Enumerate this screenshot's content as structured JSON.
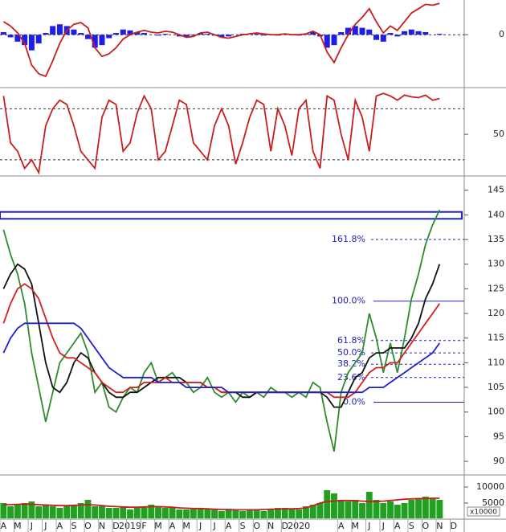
{
  "chart_data": [
    {
      "type": "line",
      "ylim": [
        -6,
        4
      ],
      "yticks": [
        0
      ],
      "grid": true,
      "series": [
        {
          "kind": "bar",
          "color": "#1e1ee6",
          "values": [
            0.3,
            -0.3,
            -0.8,
            -1.2,
            -1.8,
            -1.0,
            0.2,
            1.0,
            1.2,
            1.0,
            0.6,
            0.2,
            -0.5,
            -1.5,
            -1.2,
            -0.4,
            0.2,
            0.6,
            0.5,
            0.3,
            0.2,
            0.0,
            -0.1,
            0.1,
            0.0,
            -0.2,
            -0.3,
            -0.1,
            0.2,
            0.1,
            -0.1,
            -0.3,
            -0.2,
            0.0,
            0.1,
            0.0,
            0.1,
            -0.1,
            0.0,
            -0.1,
            0.1,
            0.0,
            -0.1,
            0.1,
            0.3,
            -0.2,
            -1.5,
            -1.2,
            0.3,
            0.8,
            1.0,
            0.8,
            0.6,
            -0.6,
            -0.8,
            0.2,
            -0.2,
            0.4,
            0.6,
            0.4,
            0.3,
            0.0,
            0.1,
            null,
            null,
            null
          ]
        },
        {
          "kind": "line",
          "color": "#c81e1e",
          "values": [
            1.5,
            1.0,
            0.2,
            -1.0,
            -3.5,
            -4.5,
            -4.8,
            -3.0,
            -1.0,
            0.5,
            1.2,
            1.4,
            0.8,
            -1.5,
            -2.5,
            -2.2,
            -1.5,
            -0.5,
            0.0,
            0.3,
            0.5,
            0.3,
            0.2,
            0.4,
            0.3,
            0.0,
            -0.3,
            -0.2,
            0.2,
            0.3,
            0.0,
            -0.3,
            -0.4,
            -0.2,
            0.0,
            0.1,
            0.2,
            0.1,
            0.0,
            0.0,
            0.1,
            0.0,
            0.0,
            0.1,
            0.4,
            0.0,
            -2.0,
            -3.2,
            -1.5,
            0.0,
            1.2,
            2.0,
            3.0,
            1.5,
            0.2,
            1.0,
            0.5,
            1.5,
            2.5,
            3.0,
            3.5,
            3.4,
            3.6,
            null,
            null,
            null
          ]
        }
      ]
    },
    {
      "type": "line",
      "ylim": [
        2,
        102
      ],
      "yticks": [
        50
      ],
      "grid": false,
      "ref_lines": [
        20,
        80
      ],
      "series": [
        {
          "kind": "line",
          "color": "#c81e1e",
          "values": [
            95,
            40,
            30,
            10,
            20,
            5,
            60,
            80,
            90,
            85,
            60,
            30,
            20,
            10,
            70,
            90,
            85,
            30,
            40,
            75,
            95,
            80,
            20,
            30,
            60,
            90,
            85,
            40,
            30,
            20,
            60,
            80,
            60,
            15,
            40,
            70,
            90,
            85,
            30,
            80,
            60,
            25,
            80,
            90,
            30,
            10,
            95,
            90,
            50,
            20,
            90,
            70,
            30,
            95,
            98,
            95,
            90,
            96,
            94,
            93,
            96,
            90,
            92,
            null,
            null,
            null
          ]
        }
      ]
    },
    {
      "type": "line",
      "ylim": [
        87.4,
        147.4
      ],
      "yticks": [
        90,
        95,
        100,
        105,
        110,
        115,
        120,
        125,
        130,
        135,
        140,
        145
      ],
      "grid": false,
      "resistance": [
        139.2,
        140.6
      ],
      "fib_levels": [
        {
          "name": "161.8%",
          "price": 135
        },
        {
          "name": "100.0%",
          "price": 122.5
        },
        {
          "name": "61.8%",
          "price": 114.5
        },
        {
          "name": "50.0%",
          "price": 112
        },
        {
          "name": "38.2%",
          "price": 109.7
        },
        {
          "name": "23.6%",
          "price": 107
        },
        {
          "name": "0.0%",
          "price": 102
        }
      ],
      "series": [
        {
          "kind": "line",
          "color": "#2e8b2e",
          "values": [
            137,
            132,
            128,
            122,
            112,
            105,
            98,
            104,
            110,
            112,
            114,
            116,
            112,
            104,
            106,
            101,
            100,
            103,
            105,
            104,
            108,
            110,
            106,
            107,
            108,
            106,
            106,
            104,
            105,
            107,
            104,
            103,
            104,
            102,
            104,
            103,
            104,
            103,
            105,
            104,
            104,
            103,
            104,
            103,
            106,
            105,
            98,
            92,
            104,
            108,
            110,
            112,
            120,
            115,
            108,
            114,
            108,
            115,
            123,
            128,
            134,
            138,
            141,
            null,
            null,
            null
          ]
        },
        {
          "kind": "line",
          "color": "#111111",
          "values": [
            125,
            128,
            130,
            129,
            126,
            118,
            110,
            105,
            104,
            106,
            110,
            112,
            111,
            108,
            106,
            104,
            103,
            103,
            104,
            104,
            105,
            106,
            107,
            107,
            107,
            107,
            106,
            106,
            106,
            105,
            105,
            104,
            104,
            104,
            103,
            103,
            104,
            104,
            104,
            104,
            104,
            104,
            104,
            104,
            104,
            104,
            103,
            101,
            101,
            104,
            107,
            108,
            111,
            112,
            112,
            113,
            113,
            113,
            115,
            118,
            123,
            126,
            130,
            null,
            null,
            null
          ]
        },
        {
          "kind": "line",
          "color": "#d42020",
          "values": [
            118,
            122,
            125,
            126,
            125,
            123,
            119,
            115,
            112,
            111,
            111,
            110,
            109,
            108,
            106,
            105,
            104,
            104,
            105,
            105,
            106,
            106,
            106,
            107,
            106,
            106,
            106,
            106,
            106,
            105,
            105,
            104,
            104,
            104,
            104,
            104,
            104,
            104,
            104,
            104,
            104,
            104,
            104,
            104,
            104,
            104,
            104,
            103,
            103,
            103,
            104,
            106,
            108,
            109,
            109,
            110,
            110,
            112,
            114,
            116,
            118,
            120,
            122,
            null,
            null,
            null
          ]
        },
        {
          "kind": "line",
          "color": "#1f1fcc",
          "values": [
            112,
            115,
            117,
            118,
            118,
            118,
            118,
            118,
            118,
            118,
            118,
            117,
            115,
            113,
            111,
            109,
            108,
            107,
            107,
            107,
            107,
            107,
            106,
            106,
            106,
            106,
            105,
            105,
            105,
            105,
            105,
            105,
            104,
            104,
            104,
            104,
            104,
            104,
            104,
            104,
            104,
            104,
            104,
            104,
            104,
            104,
            104,
            104,
            104,
            104,
            104,
            104,
            105,
            105,
            105,
            106,
            107,
            108,
            109,
            110,
            111,
            112,
            114,
            null,
            null,
            null
          ]
        }
      ]
    },
    {
      "type": "bar",
      "ylim": [
        250,
        13500
      ],
      "yticks": [
        10000,
        5000
      ],
      "grid": false,
      "y_unit": "x10000",
      "categories": [
        "A",
        null,
        "M",
        null,
        "J",
        null,
        "J",
        null,
        "A",
        null,
        "S",
        null,
        "O",
        null,
        "N",
        null,
        "D",
        null,
        "2019",
        null,
        "F",
        null,
        "M",
        null,
        "A",
        null,
        "M",
        null,
        "J",
        null,
        "J",
        null,
        "A",
        null,
        "S",
        null,
        "O",
        null,
        "N",
        null,
        "D",
        null,
        "2020",
        null,
        null,
        null,
        null,
        null,
        "A",
        null,
        "M",
        null,
        "J",
        null,
        "J",
        null,
        "A",
        null,
        "S",
        null,
        "O",
        null,
        "N",
        null,
        "D",
        null
      ],
      "series": [
        {
          "kind": "bar",
          "color": "#22a022",
          "values": [
            5000,
            4000,
            4500,
            5000,
            5500,
            4000,
            4500,
            4000,
            3500,
            4000,
            4500,
            5000,
            6000,
            4000,
            4000,
            3500,
            3500,
            4000,
            3000,
            3500,
            4000,
            4500,
            4000,
            3500,
            3500,
            3000,
            3000,
            3500,
            3500,
            3000,
            3000,
            2500,
            3000,
            3000,
            2500,
            3000,
            3000,
            2500,
            3000,
            3500,
            3500,
            3000,
            3000,
            4000,
            4500,
            5000,
            9000,
            8000,
            6000,
            5500,
            6000,
            5000,
            8500,
            6000,
            5000,
            5500,
            4500,
            5000,
            6000,
            6500,
            7000,
            6500,
            6000,
            null,
            null,
            null
          ]
        },
        {
          "kind": "line",
          "color": "#c81e1e",
          "values": [
            4500,
            4500,
            4600,
            4700,
            4600,
            4500,
            4400,
            4300,
            4200,
            4200,
            4300,
            4400,
            4500,
            4400,
            4200,
            4000,
            3900,
            3800,
            3700,
            3700,
            3800,
            3900,
            3900,
            3800,
            3700,
            3500,
            3400,
            3300,
            3300,
            3200,
            3100,
            3000,
            3000,
            2900,
            2900,
            2900,
            2900,
            3000,
            3100,
            3100,
            3200,
            3200,
            3300,
            3500,
            4200,
            5000,
            5500,
            5600,
            5800,
            5800,
            5700,
            5600,
            5500,
            5500,
            5600,
            5800,
            6000,
            6200,
            6300,
            6400,
            6400,
            6500,
            6500,
            null,
            null,
            null
          ]
        }
      ]
    }
  ]
}
